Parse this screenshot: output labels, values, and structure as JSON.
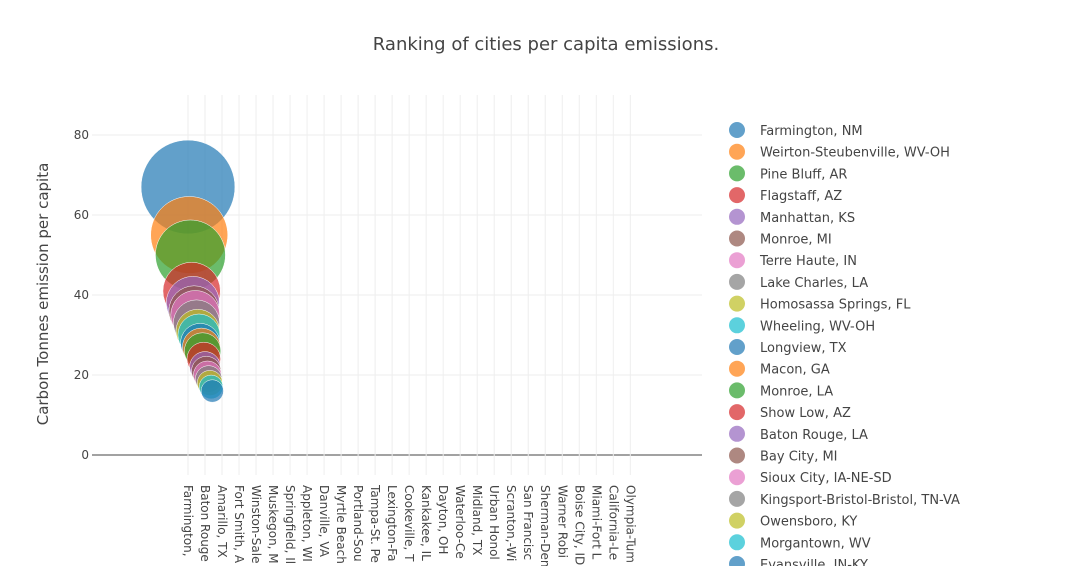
{
  "chart_data": {
    "type": "bubble",
    "title": "Ranking of cities      per capita emissions.",
    "y_label": "Carbon Tonnes emission per capita",
    "xlim": [
      -79,
      423
    ],
    "ylim": [
      -5,
      90
    ],
    "xticks": [
      {
        "value": 0,
        "label": "Farmington,"
      },
      {
        "value": 14,
        "label": "Baton Rouge"
      },
      {
        "value": 28,
        "label": "Amarillo, TX"
      },
      {
        "value": 42,
        "label": "Fort Smith, A"
      },
      {
        "value": 56,
        "label": "Winston-Sale"
      },
      {
        "value": 70,
        "label": "Muskegon, M"
      },
      {
        "value": 84,
        "label": "Springfield, Il"
      },
      {
        "value": 98,
        "label": "Appleton, WI"
      },
      {
        "value": 112,
        "label": "Danville, VA"
      },
      {
        "value": 126,
        "label": "Myrtle Beach"
      },
      {
        "value": 140,
        "label": "Portland-Sou"
      },
      {
        "value": 154,
        "label": "Tampa-St. Pe"
      },
      {
        "value": 168,
        "label": "Lexington-Fa"
      },
      {
        "value": 182,
        "label": "Cookeville, T"
      },
      {
        "value": 196,
        "label": "Kankakee, IL"
      },
      {
        "value": 210,
        "label": "Dayton, OH"
      },
      {
        "value": 224,
        "label": "Waterloo-Ce"
      },
      {
        "value": 238,
        "label": "Midland, TX"
      },
      {
        "value": 252,
        "label": "Urban Honol"
      },
      {
        "value": 266,
        "label": "Scranton,-Wi"
      },
      {
        "value": 280,
        "label": "San Francisc"
      },
      {
        "value": 294,
        "label": "Sherman-Den"
      },
      {
        "value": 308,
        "label": "Warner Robi"
      },
      {
        "value": 322,
        "label": "Boise City, ID"
      },
      {
        "value": 336,
        "label": "Miami-Fort L"
      },
      {
        "value": 350,
        "label": "California-Le"
      },
      {
        "value": 364,
        "label": "Olympia-Tum"
      }
    ],
    "yticks": [
      0,
      20,
      40,
      60,
      80
    ],
    "grid": true,
    "series": [
      {
        "name": "Farmington, NM",
        "color": "#1f77b4",
        "x": [
          0
        ],
        "values": [
          67
        ]
      },
      {
        "name": "Weirton-Steubenville, WV-OH",
        "color": "#ff7f0e",
        "x": [
          1
        ],
        "values": [
          55
        ]
      },
      {
        "name": "Pine Bluff, AR",
        "color": "#2ca02c",
        "x": [
          2
        ],
        "values": [
          50
        ]
      },
      {
        "name": "Flagstaff, AZ",
        "color": "#d62728",
        "x": [
          3
        ],
        "values": [
          41
        ]
      },
      {
        "name": "Manhattan, KS",
        "color": "#9467bd",
        "x": [
          4
        ],
        "values": [
          38
        ]
      },
      {
        "name": "Monroe, MI",
        "color": "#8c564b",
        "x": [
          5
        ],
        "values": [
          36
        ]
      },
      {
        "name": "Terre Haute, IN",
        "color": "#e377c2",
        "x": [
          6
        ],
        "values": [
          35
        ]
      },
      {
        "name": "Lake Charles, LA",
        "color": "#7f7f7f",
        "x": [
          7
        ],
        "values": [
          33
        ]
      },
      {
        "name": "Homosassa Springs, FL",
        "color": "#bcbd22",
        "x": [
          8
        ],
        "values": [
          31
        ]
      },
      {
        "name": "Wheeling, WV-OH",
        "color": "#17becf",
        "x": [
          9
        ],
        "values": [
          30
        ]
      },
      {
        "name": "Longview, TX",
        "color": "#1f77b4",
        "x": [
          10
        ],
        "values": [
          28
        ]
      },
      {
        "name": "Macon, GA",
        "color": "#ff7f0e",
        "x": [
          11
        ],
        "values": [
          27
        ]
      },
      {
        "name": "Monroe, LA",
        "color": "#2ca02c",
        "x": [
          12
        ],
        "values": [
          26
        ]
      },
      {
        "name": "Show Low, AZ",
        "color": "#d62728",
        "x": [
          13
        ],
        "values": [
          24
        ]
      },
      {
        "name": "Baton Rouge, LA",
        "color": "#9467bd",
        "x": [
          14
        ],
        "values": [
          22
        ]
      },
      {
        "name": "Bay City, MI",
        "color": "#8c564b",
        "x": [
          15
        ],
        "values": [
          21
        ]
      },
      {
        "name": "Sioux City, IA-NE-SD",
        "color": "#e377c2",
        "x": [
          16
        ],
        "values": [
          20
        ]
      },
      {
        "name": "Kingsport-Bristol-Bristol, TN-VA",
        "color": "#7f7f7f",
        "x": [
          17
        ],
        "values": [
          19
        ]
      },
      {
        "name": "Owensboro, KY",
        "color": "#bcbd22",
        "x": [
          18
        ],
        "values": [
          18
        ]
      },
      {
        "name": "Morgantown, WV",
        "color": "#17becf",
        "x": [
          19
        ],
        "values": [
          17
        ]
      },
      {
        "name": "Evansville, IN-KY",
        "color": "#1f77b4",
        "x": [
          20
        ],
        "values": [
          16
        ]
      }
    ]
  }
}
